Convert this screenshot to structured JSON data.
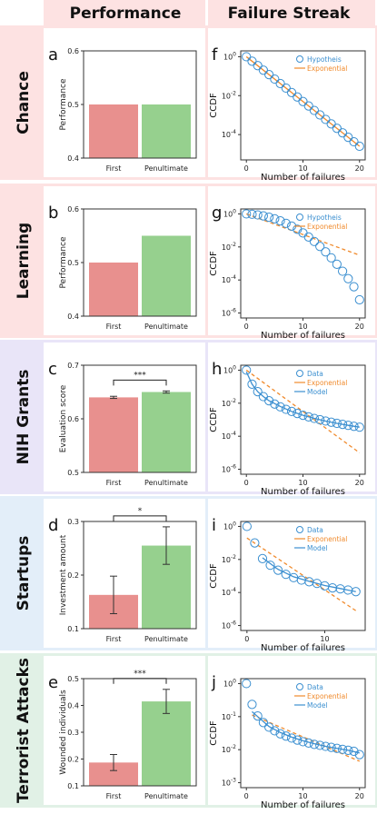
{
  "headers": {
    "left": "Performance",
    "right": "Failure Streak"
  },
  "colors": {
    "first_bar": "#e8908e",
    "penultimate_bar": "#96d08e",
    "circle": "#3b8fd0",
    "exponential": "#f08a2c",
    "model": "#3b8fd0",
    "header_bg": "#fde2e2",
    "chance_bg": "#fde2e2",
    "learning_bg": "#fde2e2",
    "nih_bg": "#e9e5f8",
    "startups_bg": "#e3eef9",
    "terror_bg": "#e1f1e6"
  },
  "rows": [
    {
      "label": "Chance",
      "left_letter": "a",
      "right_letter": "f"
    },
    {
      "label": "Learning",
      "left_letter": "b",
      "right_letter": "g"
    },
    {
      "label": "NIH Grants",
      "left_letter": "c",
      "right_letter": "h"
    },
    {
      "label": "Startups",
      "left_letter": "d",
      "right_letter": "i"
    },
    {
      "label": "Terrorist Attacks",
      "left_letter": "e",
      "right_letter": "j"
    }
  ],
  "chart_data": [
    {
      "type": "bar",
      "panel": "a",
      "categories": [
        "First",
        "Penultimate"
      ],
      "values": [
        0.5,
        0.5
      ],
      "ylabel": "Performance",
      "ylim": [
        0.4,
        0.6
      ],
      "yticks": [
        "0.4",
        "0.5",
        "0.6"
      ]
    },
    {
      "type": "bar",
      "panel": "b",
      "categories": [
        "First",
        "Penultimate"
      ],
      "values": [
        0.5,
        0.55
      ],
      "ylabel": "Performance",
      "ylim": [
        0.4,
        0.6
      ],
      "yticks": [
        "0.4",
        "0.5",
        "0.6"
      ]
    },
    {
      "type": "bar",
      "panel": "c",
      "categories": [
        "First",
        "Penultimate"
      ],
      "values": [
        0.64,
        0.65
      ],
      "errors": [
        0.002,
        0.002
      ],
      "ylabel": "Evaluation score",
      "ylim": [
        0.5,
        0.7
      ],
      "yticks": [
        "0.5",
        "0.6",
        "0.7"
      ],
      "annotation": "***"
    },
    {
      "type": "bar",
      "panel": "d",
      "categories": [
        "First",
        "Penultimate"
      ],
      "values": [
        0.163,
        0.255
      ],
      "errors": [
        0.035,
        0.035
      ],
      "ylabel": "Investment amount",
      "ylim": [
        0.1,
        0.3
      ],
      "yticks": [
        "0.1",
        "0.2",
        "0.3"
      ],
      "annotation": "*"
    },
    {
      "type": "bar",
      "panel": "e",
      "categories": [
        "First",
        "Penultimate"
      ],
      "values": [
        0.187,
        0.415
      ],
      "errors": [
        0.03,
        0.045
      ],
      "ylabel": "Wounded individuals",
      "ylim": [
        0.1,
        0.5
      ],
      "yticks": [
        "0.1",
        "0.2",
        "0.3",
        "0.4",
        "0.5"
      ],
      "annotation": "***"
    },
    {
      "type": "scatter",
      "panel": "f",
      "log_y": true,
      "xlabel": "Number of failures",
      "ylabel": "CCDF",
      "xlim": [
        -1,
        21
      ],
      "ylim_exp": [
        -5.3,
        0.3
      ],
      "xticks": [
        0,
        10,
        20
      ],
      "yticks_exp": [
        0,
        -2,
        -4
      ],
      "series": [
        {
          "name": "Hypotheis",
          "style": "circles",
          "x": [
            0,
            1,
            2,
            3,
            4,
            5,
            6,
            7,
            8,
            9,
            10,
            11,
            12,
            13,
            14,
            15,
            16,
            17,
            18,
            19,
            20
          ],
          "log10y": [
            0,
            -0.23,
            -0.46,
            -0.69,
            -0.92,
            -1.15,
            -1.38,
            -1.61,
            -1.84,
            -2.07,
            -2.3,
            -2.53,
            -2.76,
            -2.99,
            -3.22,
            -3.45,
            -3.68,
            -3.91,
            -4.14,
            -4.37,
            -4.6
          ]
        },
        {
          "name": "Exponential",
          "style": "line",
          "x": [
            0,
            20
          ],
          "log10y": [
            0,
            -4.6
          ]
        }
      ]
    },
    {
      "type": "scatter",
      "panel": "g",
      "log_y": true,
      "xlabel": "Number of failures",
      "ylabel": "CCDF",
      "xlim": [
        -1,
        21
      ],
      "ylim_exp": [
        -6.3,
        0.3
      ],
      "xticks": [
        0,
        10,
        20
      ],
      "yticks_exp": [
        0,
        -2,
        -4,
        -6
      ],
      "series": [
        {
          "name": "Hypotheis",
          "style": "circles",
          "x": [
            0,
            1,
            2,
            3,
            4,
            5,
            6,
            7,
            8,
            9,
            10,
            11,
            12,
            13,
            14,
            15,
            16,
            17,
            18,
            19,
            20
          ],
          "log10y": [
            0,
            -0.02,
            -0.06,
            -0.12,
            -0.2,
            -0.3,
            -0.42,
            -0.57,
            -0.74,
            -0.93,
            -1.15,
            -1.4,
            -1.67,
            -1.97,
            -2.3,
            -2.66,
            -3.05,
            -3.47,
            -3.92,
            -4.41,
            -5.2
          ]
        },
        {
          "name": "Exponential",
          "style": "dashed",
          "x": [
            0,
            20
          ],
          "log10y": [
            0,
            -2.5
          ]
        }
      ]
    },
    {
      "type": "scatter",
      "panel": "h",
      "log_y": true,
      "xlabel": "Number of failures",
      "ylabel": "CCDF",
      "xlim": [
        -1,
        21
      ],
      "ylim_exp": [
        -6.3,
        0.3
      ],
      "xticks": [
        0,
        10,
        20
      ],
      "yticks_exp": [
        0,
        -2,
        -4,
        -6
      ],
      "series": [
        {
          "name": "Data",
          "style": "circles",
          "x": [
            0,
            1,
            2,
            3,
            4,
            5,
            6,
            7,
            8,
            9,
            10,
            11,
            12,
            13,
            14,
            15,
            16,
            17,
            18,
            19,
            20
          ],
          "log10y": [
            0,
            -0.85,
            -1.3,
            -1.6,
            -1.85,
            -2.05,
            -2.22,
            -2.37,
            -2.5,
            -2.62,
            -2.73,
            -2.83,
            -2.92,
            -3.0,
            -3.08,
            -3.15,
            -3.22,
            -3.28,
            -3.34,
            -3.4,
            -3.45
          ]
        },
        {
          "name": "Exponential",
          "style": "dashed",
          "x": [
            0,
            20
          ],
          "log10y": [
            0,
            -5.0
          ]
        },
        {
          "name": "Model",
          "style": "line",
          "x": [
            0,
            1,
            2,
            3,
            4,
            6,
            8,
            10,
            12,
            14,
            16,
            18,
            20
          ],
          "log10y": [
            -0.1,
            -0.85,
            -1.3,
            -1.6,
            -1.85,
            -2.2,
            -2.5,
            -2.73,
            -2.92,
            -3.08,
            -3.22,
            -3.34,
            -3.45
          ]
        }
      ]
    },
    {
      "type": "scatter",
      "panel": "i",
      "log_y": true,
      "xlabel": "Number of failures",
      "ylabel": "CCDF",
      "xlim": [
        -0.8,
        15.2
      ],
      "ylim_exp": [
        -6.3,
        0.3
      ],
      "xticks": [
        0,
        10
      ],
      "yticks_exp": [
        0,
        -2,
        -4,
        -6
      ],
      "series": [
        {
          "name": "Data",
          "style": "circles",
          "x": [
            0,
            1,
            2,
            3,
            4,
            5,
            6,
            7,
            8,
            9,
            10,
            11,
            12,
            13,
            14
          ],
          "log10y": [
            0,
            -1.0,
            -1.95,
            -2.35,
            -2.65,
            -2.9,
            -3.1,
            -3.25,
            -3.35,
            -3.45,
            -3.6,
            -3.72,
            -3.78,
            -3.85,
            -3.95
          ]
        },
        {
          "name": "Exponential",
          "style": "dashed",
          "x": [
            0,
            14
          ],
          "log10y": [
            -0.7,
            -5.1
          ]
        },
        {
          "name": "Model",
          "style": "line",
          "x": [
            2,
            4,
            6,
            8,
            10,
            12,
            14
          ],
          "log10y": [
            -1.9,
            -2.6,
            -3.05,
            -3.32,
            -3.58,
            -3.76,
            -3.95
          ]
        }
      ]
    },
    {
      "type": "scatter",
      "panel": "j",
      "log_y": true,
      "xlabel": "Number of failures",
      "ylabel": "CCDF",
      "xlim": [
        -1,
        21
      ],
      "ylim_exp": [
        -3.15,
        0.15
      ],
      "xticks": [
        0,
        10,
        20
      ],
      "yticks_exp": [
        0,
        -1,
        -2,
        -3
      ],
      "series": [
        {
          "name": "Data",
          "style": "circles",
          "x": [
            0,
            1,
            2,
            3,
            4,
            5,
            6,
            7,
            8,
            9,
            10,
            11,
            12,
            13,
            14,
            15,
            16,
            17,
            18,
            19,
            20
          ],
          "log10y": [
            0,
            -0.63,
            -0.98,
            -1.18,
            -1.32,
            -1.43,
            -1.52,
            -1.59,
            -1.65,
            -1.71,
            -1.76,
            -1.8,
            -1.84,
            -1.87,
            -1.9,
            -1.93,
            -1.96,
            -1.99,
            -2.02,
            -2.05,
            -2.15
          ]
        },
        {
          "name": "Exponential",
          "style": "dashed",
          "x": [
            1,
            20
          ],
          "log10y": [
            -0.95,
            -2.35
          ]
        },
        {
          "name": "Model",
          "style": "line",
          "x": [
            1,
            2,
            4,
            6,
            8,
            10,
            12,
            14,
            16,
            18,
            20
          ],
          "log10y": [
            -0.85,
            -1.0,
            -1.3,
            -1.48,
            -1.62,
            -1.73,
            -1.82,
            -1.9,
            -1.96,
            -2.02,
            -2.1
          ]
        }
      ]
    }
  ]
}
